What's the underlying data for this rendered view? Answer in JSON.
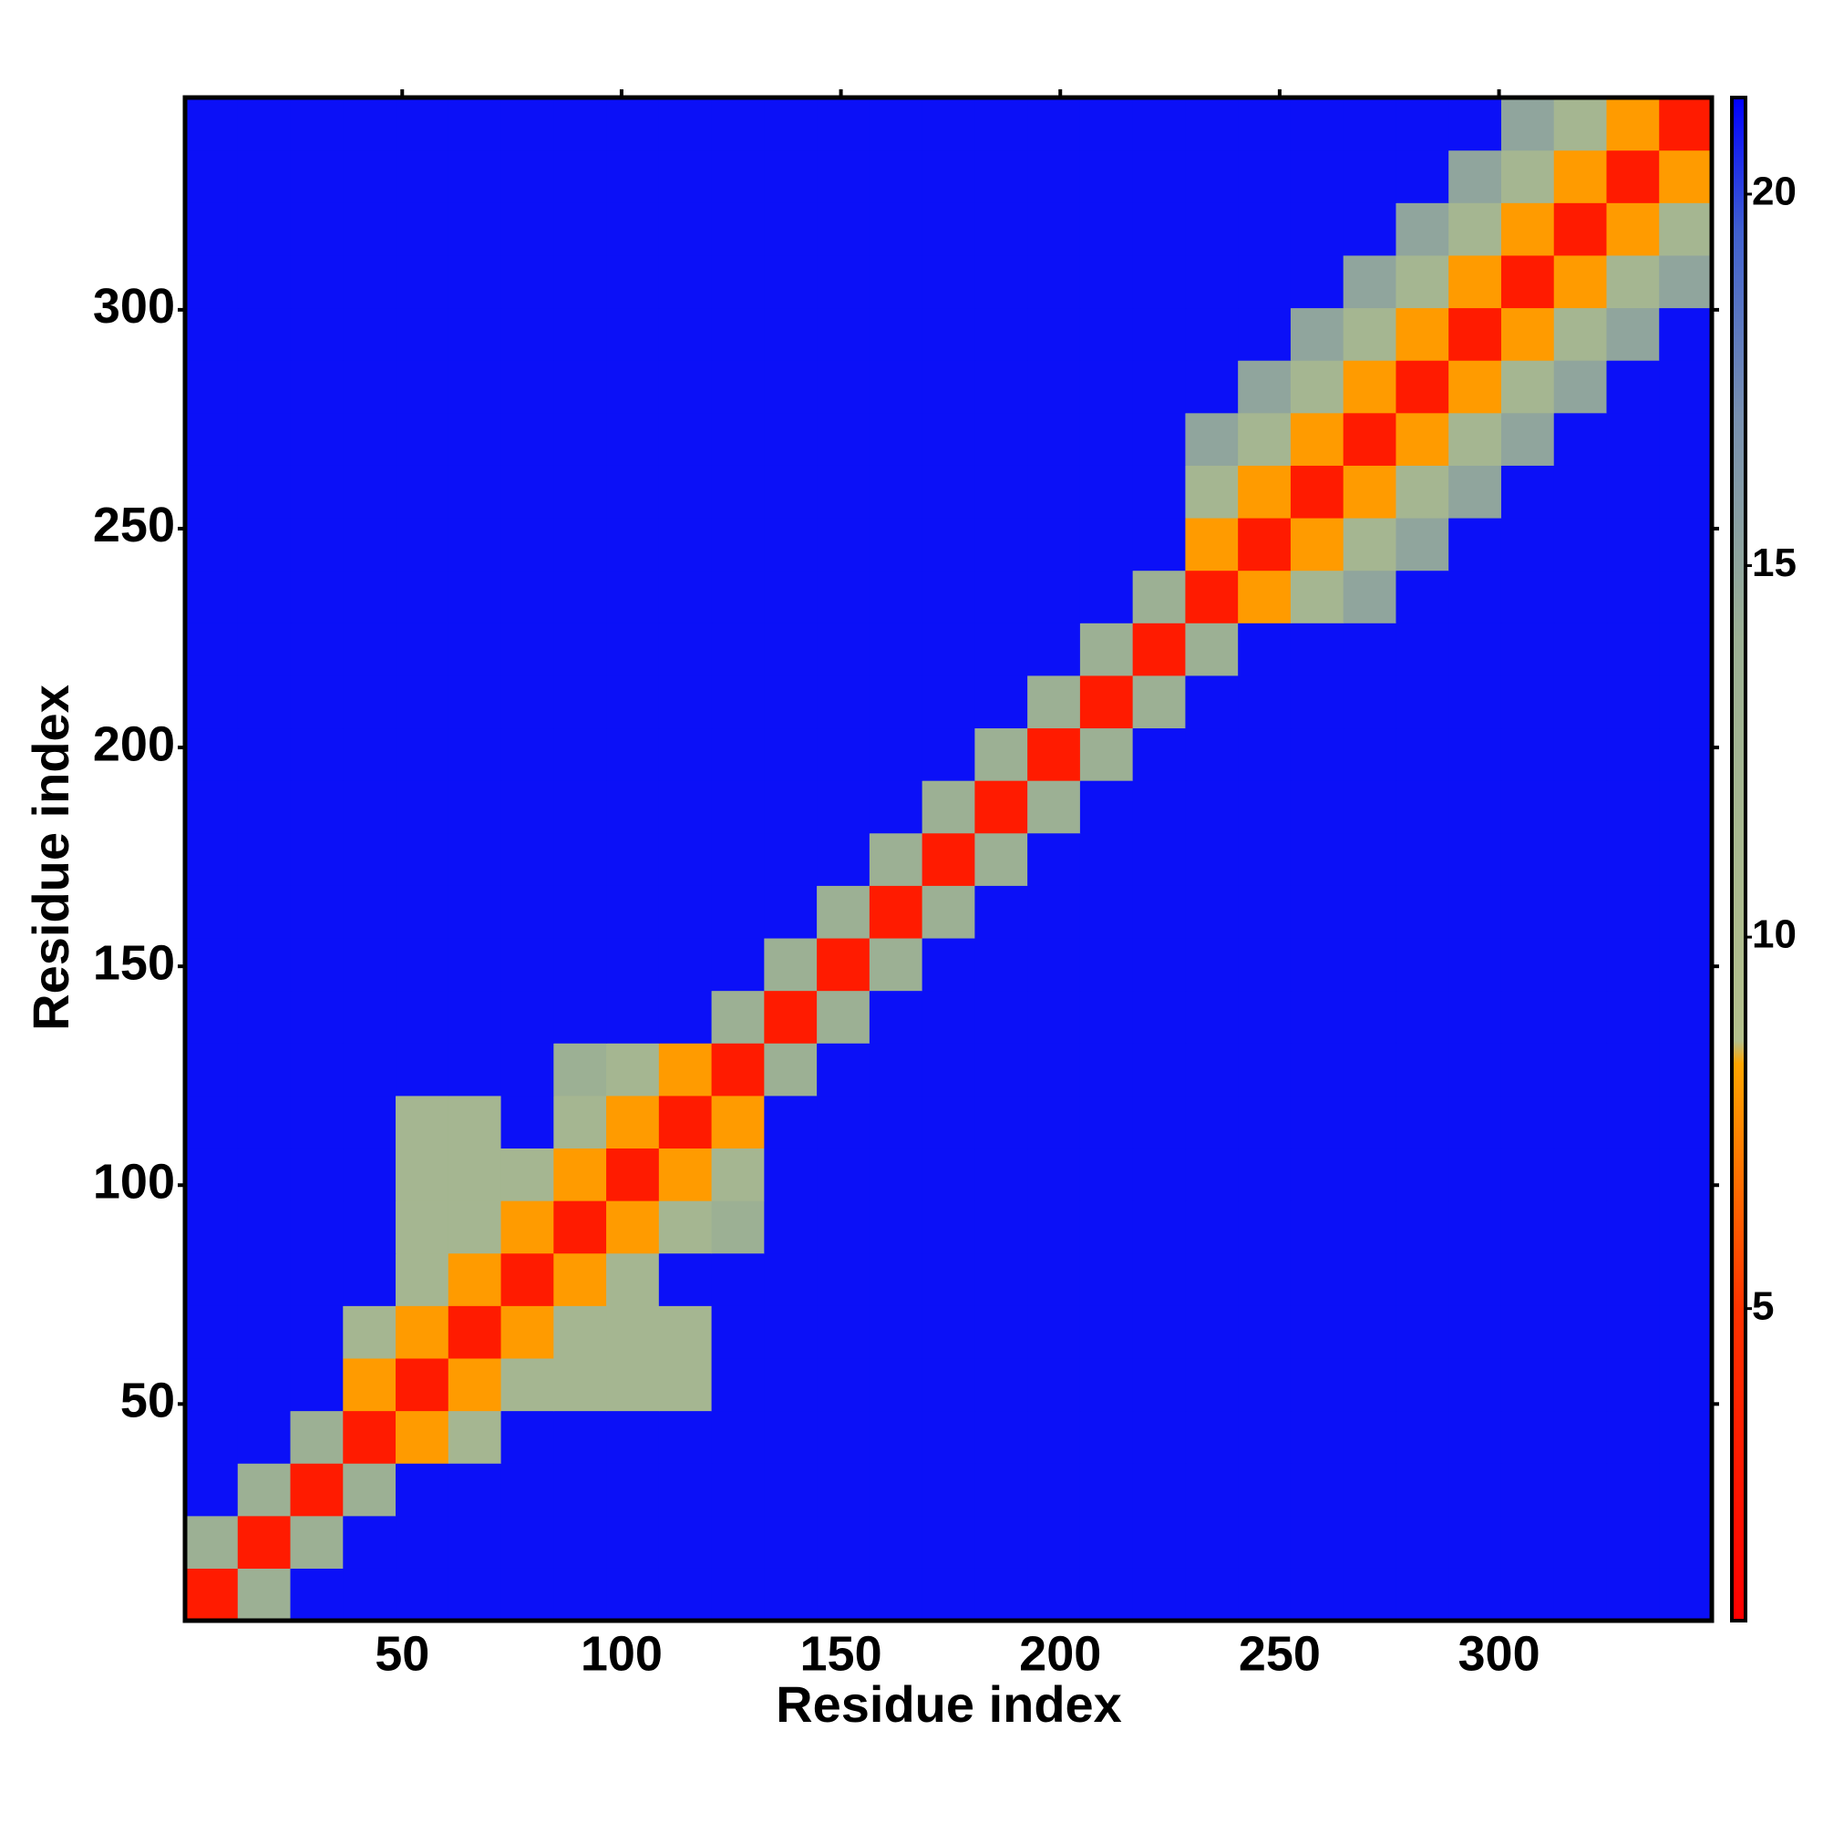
{
  "chart_data": {
    "type": "heatmap",
    "xlabel": "Residue index",
    "ylabel": "Residue index",
    "xbins": [
      0.5,
      12.5,
      24.5,
      36.5,
      48.5,
      60.5,
      72.5,
      84.5,
      96.5,
      108.5,
      120.5,
      132.5,
      144.5,
      156.5,
      168.5,
      180.5,
      192.5,
      204.5,
      216.5,
      228.5,
      240.5,
      252.5,
      264.5,
      276.5,
      288.5,
      300.5,
      312.5,
      324.5,
      336.5,
      348.5
    ],
    "ybins": [
      0.5,
      12.5,
      24.5,
      36.5,
      48.5,
      60.5,
      72.5,
      84.5,
      96.5,
      108.5,
      120.5,
      132.5,
      144.5,
      156.5,
      168.5,
      180.5,
      192.5,
      204.5,
      216.5,
      228.5,
      240.5,
      252.5,
      264.5,
      276.5,
      288.5,
      300.5,
      312.5,
      324.5,
      336.5,
      348.5
    ],
    "z": [
      [
        3,
        14,
        21,
        21,
        21,
        21,
        21,
        21,
        21,
        21,
        21,
        21,
        21,
        21,
        21,
        21,
        21,
        21,
        21,
        21,
        21,
        21,
        21,
        21,
        21,
        21,
        21,
        21,
        21
      ],
      [
        14,
        3,
        14,
        21,
        21,
        21,
        21,
        21,
        21,
        21,
        21,
        21,
        21,
        21,
        21,
        21,
        21,
        21,
        21,
        21,
        21,
        21,
        21,
        21,
        21,
        21,
        21,
        21,
        21
      ],
      [
        21,
        14,
        3,
        14,
        21,
        21,
        21,
        21,
        21,
        21,
        21,
        21,
        21,
        21,
        21,
        21,
        21,
        21,
        21,
        21,
        21,
        21,
        21,
        21,
        21,
        21,
        21,
        21,
        21
      ],
      [
        21,
        21,
        14,
        3,
        8,
        12,
        21,
        21,
        21,
        21,
        21,
        21,
        21,
        21,
        21,
        21,
        21,
        21,
        21,
        21,
        21,
        21,
        21,
        21,
        21,
        21,
        21,
        21,
        21
      ],
      [
        21,
        21,
        21,
        8,
        3,
        8,
        12,
        12,
        12,
        12,
        21,
        21,
        21,
        21,
        21,
        21,
        21,
        21,
        21,
        21,
        21,
        21,
        21,
        21,
        21,
        21,
        21,
        21,
        21
      ],
      [
        21,
        21,
        21,
        12,
        8,
        3,
        8,
        12,
        12,
        12,
        21,
        21,
        21,
        21,
        21,
        21,
        21,
        21,
        21,
        21,
        21,
        21,
        21,
        21,
        21,
        21,
        21,
        21,
        21
      ],
      [
        21,
        21,
        21,
        21,
        12,
        8,
        3,
        8,
        12,
        21,
        21,
        21,
        21,
        21,
        21,
        21,
        21,
        21,
        21,
        21,
        21,
        21,
        21,
        21,
        21,
        21,
        21,
        21,
        21
      ],
      [
        21,
        21,
        21,
        21,
        12,
        12,
        8,
        3,
        8,
        12,
        14,
        21,
        21,
        21,
        21,
        21,
        21,
        21,
        21,
        21,
        21,
        21,
        21,
        21,
        21,
        21,
        21,
        21,
        21
      ],
      [
        21,
        21,
        21,
        21,
        12,
        12,
        12,
        8,
        3,
        8,
        12,
        21,
        21,
        21,
        21,
        21,
        21,
        21,
        21,
        21,
        21,
        21,
        21,
        21,
        21,
        21,
        21,
        21,
        21
      ],
      [
        21,
        21,
        21,
        21,
        12,
        12,
        21,
        12,
        8,
        3,
        8,
        21,
        21,
        21,
        21,
        21,
        21,
        21,
        21,
        21,
        21,
        21,
        21,
        21,
        21,
        21,
        21,
        21,
        21
      ],
      [
        21,
        21,
        21,
        21,
        21,
        21,
        21,
        14,
        12,
        8,
        3,
        14,
        21,
        21,
        21,
        21,
        21,
        21,
        21,
        21,
        21,
        21,
        21,
        21,
        21,
        21,
        21,
        21,
        21
      ],
      [
        21,
        21,
        21,
        21,
        21,
        21,
        21,
        21,
        21,
        21,
        14,
        3,
        14,
        21,
        21,
        21,
        21,
        21,
        21,
        21,
        21,
        21,
        21,
        21,
        21,
        21,
        21,
        21,
        21
      ],
      [
        21,
        21,
        21,
        21,
        21,
        21,
        21,
        21,
        21,
        21,
        21,
        14,
        3,
        14,
        21,
        21,
        21,
        21,
        21,
        21,
        21,
        21,
        21,
        21,
        21,
        21,
        21,
        21,
        21
      ],
      [
        21,
        21,
        21,
        21,
        21,
        21,
        21,
        21,
        21,
        21,
        21,
        21,
        14,
        3,
        14,
        21,
        21,
        21,
        21,
        21,
        21,
        21,
        21,
        21,
        21,
        21,
        21,
        21,
        21
      ],
      [
        21,
        21,
        21,
        21,
        21,
        21,
        21,
        21,
        21,
        21,
        21,
        21,
        21,
        14,
        3,
        14,
        21,
        21,
        21,
        21,
        21,
        21,
        21,
        21,
        21,
        21,
        21,
        21,
        21
      ],
      [
        21,
        21,
        21,
        21,
        21,
        21,
        21,
        21,
        21,
        21,
        21,
        21,
        21,
        21,
        14,
        3,
        14,
        21,
        21,
        21,
        21,
        21,
        21,
        21,
        21,
        21,
        21,
        21,
        21
      ],
      [
        21,
        21,
        21,
        21,
        21,
        21,
        21,
        21,
        21,
        21,
        21,
        21,
        21,
        21,
        21,
        14,
        3,
        14,
        21,
        21,
        21,
        21,
        21,
        21,
        21,
        21,
        21,
        21,
        21
      ],
      [
        21,
        21,
        21,
        21,
        21,
        21,
        21,
        21,
        21,
        21,
        21,
        21,
        21,
        21,
        21,
        21,
        14,
        3,
        14,
        21,
        21,
        21,
        21,
        21,
        21,
        21,
        21,
        21,
        21
      ],
      [
        21,
        21,
        21,
        21,
        21,
        21,
        21,
        21,
        21,
        21,
        21,
        21,
        21,
        21,
        21,
        21,
        21,
        14,
        3,
        14,
        21,
        21,
        21,
        21,
        21,
        21,
        21,
        21,
        21
      ],
      [
        21,
        21,
        21,
        21,
        21,
        21,
        21,
        21,
        21,
        21,
        21,
        21,
        21,
        21,
        21,
        21,
        21,
        21,
        14,
        3,
        8,
        12,
        15,
        21,
        21,
        21,
        21,
        21,
        21
      ],
      [
        21,
        21,
        21,
        21,
        21,
        21,
        21,
        21,
        21,
        21,
        21,
        21,
        21,
        21,
        21,
        21,
        21,
        21,
        21,
        8,
        3,
        8,
        12,
        15,
        21,
        21,
        21,
        21,
        21
      ],
      [
        21,
        21,
        21,
        21,
        21,
        21,
        21,
        21,
        21,
        21,
        21,
        21,
        21,
        21,
        21,
        21,
        21,
        21,
        21,
        12,
        8,
        3,
        8,
        12,
        15,
        21,
        21,
        21,
        21
      ],
      [
        21,
        21,
        21,
        21,
        21,
        21,
        21,
        21,
        21,
        21,
        21,
        21,
        21,
        21,
        21,
        21,
        21,
        21,
        21,
        15,
        12,
        8,
        3,
        8,
        12,
        15,
        21,
        21,
        21
      ],
      [
        21,
        21,
        21,
        21,
        21,
        21,
        21,
        21,
        21,
        21,
        21,
        21,
        21,
        21,
        21,
        21,
        21,
        21,
        21,
        21,
        15,
        12,
        8,
        3,
        8,
        12,
        15,
        21,
        21
      ],
      [
        21,
        21,
        21,
        21,
        21,
        21,
        21,
        21,
        21,
        21,
        21,
        21,
        21,
        21,
        21,
        21,
        21,
        21,
        21,
        21,
        21,
        15,
        12,
        8,
        3,
        8,
        12,
        15,
        21
      ],
      [
        21,
        21,
        21,
        21,
        21,
        21,
        21,
        21,
        21,
        21,
        21,
        21,
        21,
        21,
        21,
        21,
        21,
        21,
        21,
        21,
        21,
        21,
        15,
        12,
        8,
        3,
        8,
        12,
        15
      ],
      [
        21,
        21,
        21,
        21,
        21,
        21,
        21,
        21,
        21,
        21,
        21,
        21,
        21,
        21,
        21,
        21,
        21,
        21,
        21,
        21,
        21,
        21,
        21,
        15,
        12,
        8,
        3,
        8,
        12
      ],
      [
        21,
        21,
        21,
        21,
        21,
        21,
        21,
        21,
        21,
        21,
        21,
        21,
        21,
        21,
        21,
        21,
        21,
        21,
        21,
        21,
        21,
        21,
        21,
        21,
        15,
        12,
        8,
        3,
        8
      ],
      [
        21,
        21,
        21,
        21,
        21,
        21,
        21,
        21,
        21,
        21,
        21,
        21,
        21,
        21,
        21,
        21,
        21,
        21,
        21,
        21,
        21,
        21,
        21,
        21,
        21,
        15,
        12,
        8,
        3
      ]
    ],
    "xlim": [
      0.5,
      348.5
    ],
    "ylim": [
      0.5,
      348.5
    ],
    "xticks": [
      50,
      100,
      150,
      200,
      250,
      300
    ],
    "yticks": [
      50,
      100,
      150,
      200,
      250,
      300
    ],
    "zlim": [
      0.8,
      21.3
    ],
    "zticks": [
      5,
      10,
      15,
      20
    ],
    "colorscale": [
      {
        "value": 0.8,
        "color": "#ff0000"
      },
      {
        "value": 5,
        "color": "#ff3300"
      },
      {
        "value": 8.3,
        "color": "#ffa500"
      },
      {
        "value": 8.6,
        "color": "#b4c08c"
      },
      {
        "value": 14,
        "color": "#9cb094"
      },
      {
        "value": 17,
        "color": "#7890b0"
      },
      {
        "value": 19.5,
        "color": "#4060d0"
      },
      {
        "value": 21.3,
        "color": "#0000ff"
      }
    ]
  }
}
